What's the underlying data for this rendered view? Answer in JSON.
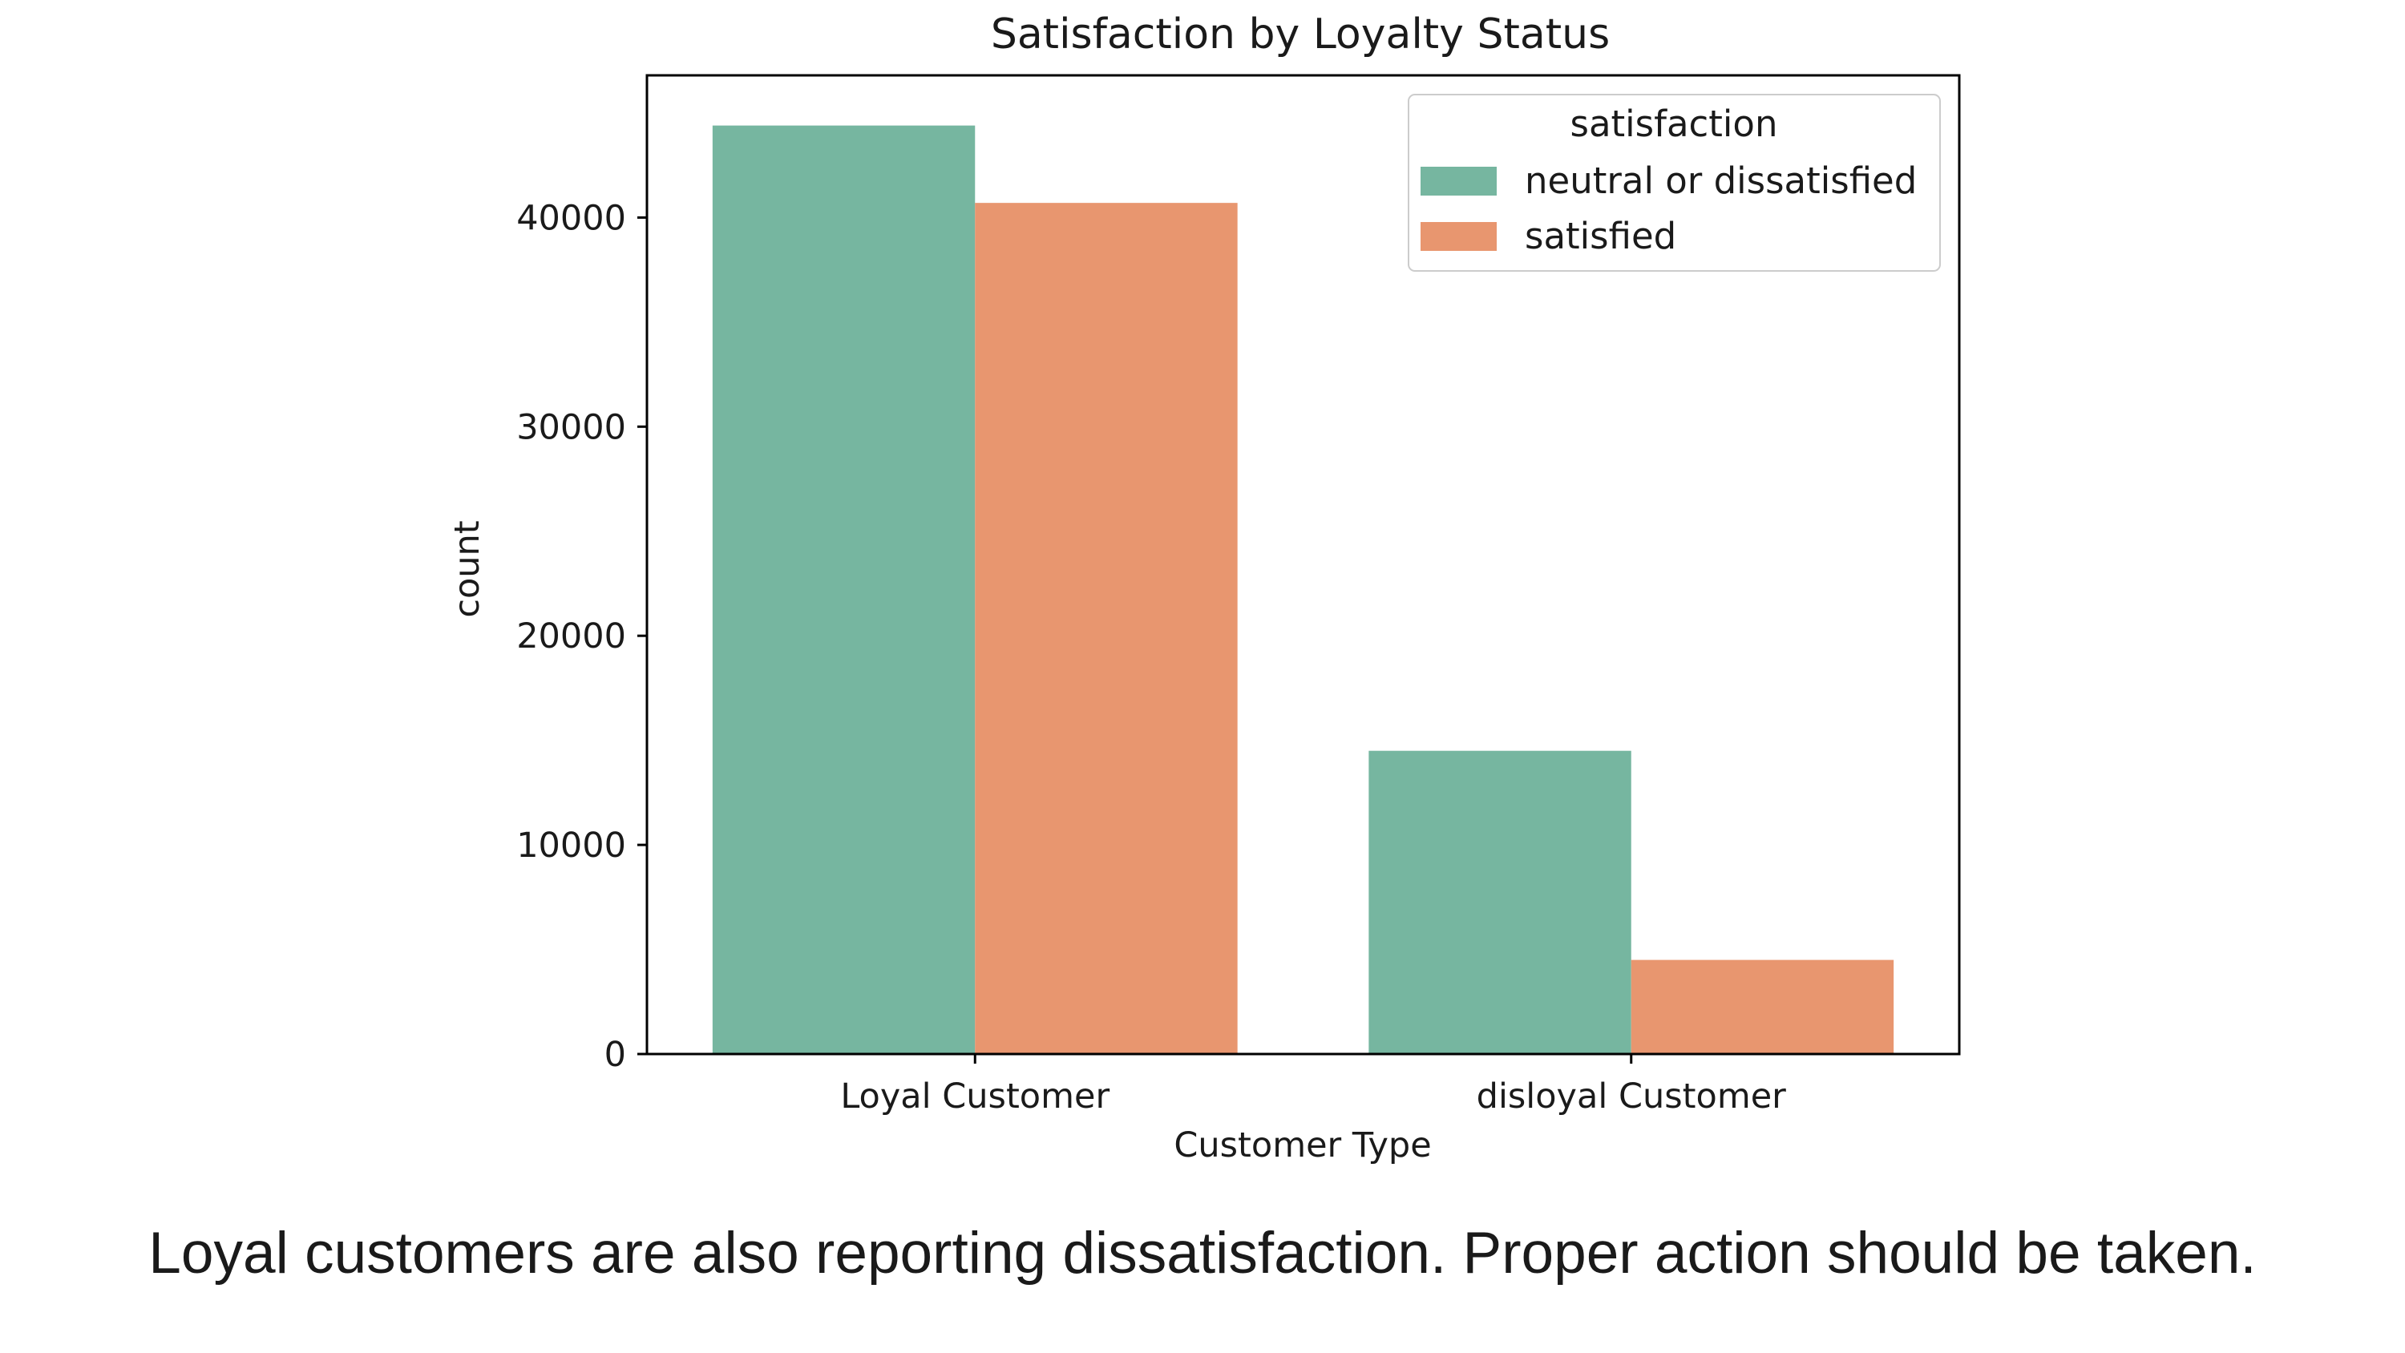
{
  "caption": "Loyal customers are also reporting dissatisfaction. Proper action should be taken.",
  "chart_data": {
    "type": "bar",
    "title": "Satisfaction by Loyalty Status",
    "xlabel": "Customer Type",
    "ylabel": "count",
    "categories": [
      "Loyal Customer",
      "disloyal Customer"
    ],
    "series": [
      {
        "name": "neutral or dissatisfied",
        "color": "#76b6a0",
        "values": [
          44400,
          14500
        ]
      },
      {
        "name": "satisfied",
        "color": "#e8966f",
        "values": [
          40700,
          4500
        ]
      }
    ],
    "ylim": [
      0,
      46800
    ],
    "yticks": [
      0,
      10000,
      20000,
      30000,
      40000
    ],
    "legend": {
      "title": "satisfaction",
      "position": "top-right"
    },
    "grid": false
  }
}
